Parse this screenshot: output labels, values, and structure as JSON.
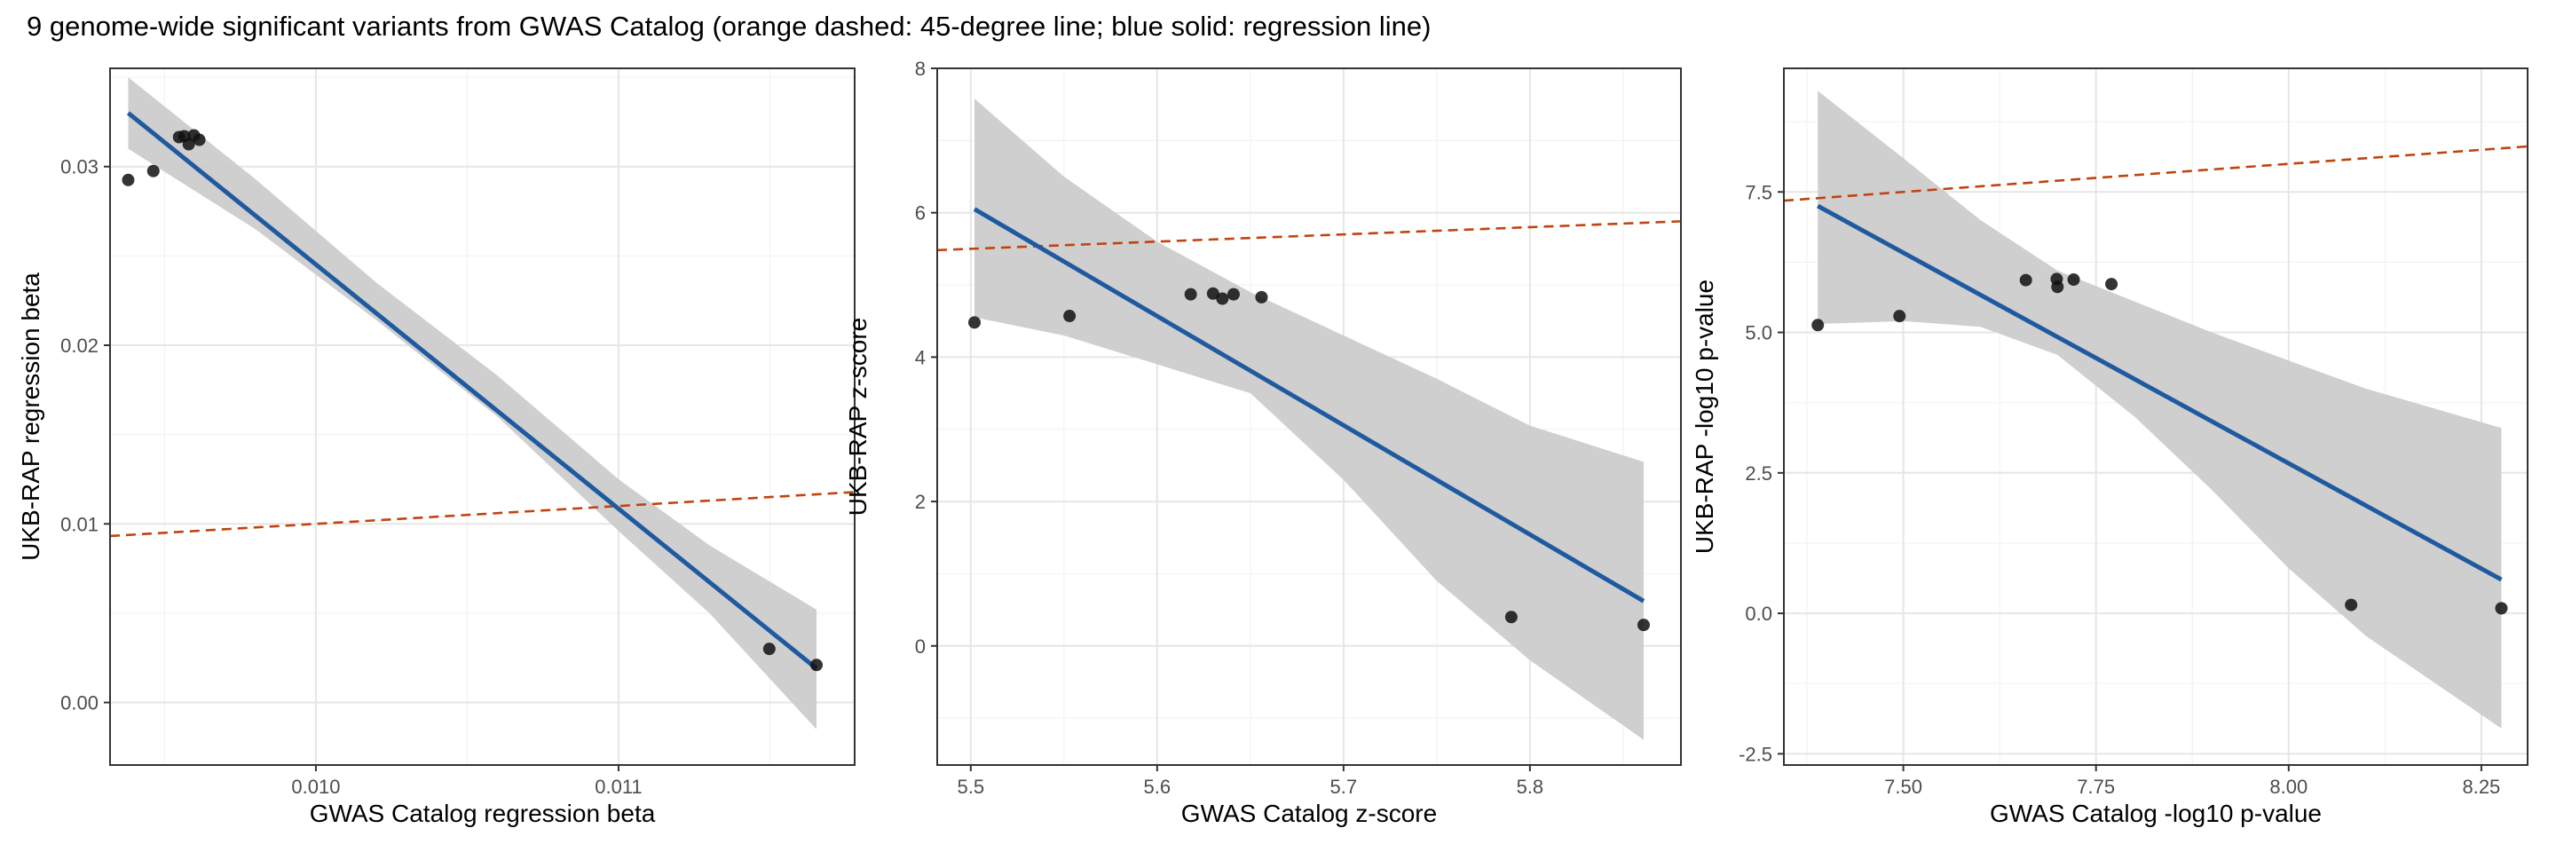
{
  "figure": {
    "title": "9 genome-wide significant variants from GWAS Catalog (orange dashed: 45-degree line; blue solid: regression line)"
  },
  "colors": {
    "regression_line": "#1f5aa0",
    "identity_line": "#c0440e",
    "confidence_band": "#cccccc",
    "points": "#111111",
    "grid_major": "#e6e6e6",
    "grid_minor": "#f3f3f3",
    "panel_border": "#333333"
  },
  "chart_data": [
    {
      "type": "scatter",
      "xlabel": "GWAS Catalog regression beta",
      "ylabel": "UKB-RAP regression beta",
      "xlim": [
        0.00932,
        0.01178
      ],
      "ylim": [
        -0.0035,
        0.0355
      ],
      "xticks": [
        0.01,
        0.011
      ],
      "xtick_labels": [
        "0.010",
        "0.011"
      ],
      "yticks": [
        0.0,
        0.01,
        0.02,
        0.03
      ],
      "ytick_labels": [
        "0.00",
        "0.01",
        "0.02",
        "0.03"
      ],
      "points": [
        {
          "x": 0.00938,
          "y": 0.02925
        },
        {
          "x": 0.009463,
          "y": 0.02975
        },
        {
          "x": 0.009548,
          "y": 0.03165
        },
        {
          "x": 0.009565,
          "y": 0.0317
        },
        {
          "x": 0.00958,
          "y": 0.03125
        },
        {
          "x": 0.009597,
          "y": 0.03175
        },
        {
          "x": 0.009615,
          "y": 0.0315
        },
        {
          "x": 0.011498,
          "y": 0.003
        },
        {
          "x": 0.011654,
          "y": 0.0021
        }
      ],
      "regression": {
        "x0": 0.00938,
        "y0": 0.033,
        "x1": 0.011654,
        "y1": 0.0019
      },
      "band": [
        {
          "x": 0.00938,
          "lo": 0.031,
          "hi": 0.035
        },
        {
          "x": 0.0098,
          "lo": 0.0265,
          "hi": 0.0293
        },
        {
          "x": 0.0102,
          "lo": 0.0214,
          "hi": 0.0235
        },
        {
          "x": 0.0106,
          "lo": 0.016,
          "hi": 0.0183
        },
        {
          "x": 0.011,
          "lo": 0.0096,
          "hi": 0.0125
        },
        {
          "x": 0.0113,
          "lo": 0.005,
          "hi": 0.0088
        },
        {
          "x": 0.011654,
          "lo": -0.0015,
          "hi": 0.0052
        }
      ],
      "identity_line": true
    },
    {
      "type": "scatter",
      "xlabel": "GWAS Catalog z-score",
      "ylabel": "UKB-RAP z-score",
      "xlim": [
        5.482,
        5.881
      ],
      "ylim": [
        -1.65,
        8.0
      ],
      "xticks": [
        5.5,
        5.6,
        5.7,
        5.8
      ],
      "xtick_labels": [
        "5.5",
        "5.6",
        "5.7",
        "5.8"
      ],
      "yticks": [
        0,
        2,
        4,
        6,
        8
      ],
      "ytick_labels": [
        "0",
        "2",
        "4",
        "6",
        "8"
      ],
      "points": [
        {
          "x": 5.502,
          "y": 4.48
        },
        {
          "x": 5.553,
          "y": 4.57
        },
        {
          "x": 5.618,
          "y": 4.87
        },
        {
          "x": 5.63,
          "y": 4.88
        },
        {
          "x": 5.635,
          "y": 4.81
        },
        {
          "x": 5.641,
          "y": 4.87
        },
        {
          "x": 5.656,
          "y": 4.83
        },
        {
          "x": 5.79,
          "y": 0.4
        },
        {
          "x": 5.861,
          "y": 0.29
        }
      ],
      "regression": {
        "x0": 5.502,
        "y0": 6.05,
        "x1": 5.861,
        "y1": 0.62
      },
      "band": [
        {
          "x": 5.502,
          "lo": 4.55,
          "hi": 7.58
        },
        {
          "x": 5.55,
          "lo": 4.3,
          "hi": 6.5
        },
        {
          "x": 5.6,
          "lo": 3.9,
          "hi": 5.6
        },
        {
          "x": 5.65,
          "lo": 3.5,
          "hi": 4.9
        },
        {
          "x": 5.7,
          "lo": 2.3,
          "hi": 4.3
        },
        {
          "x": 5.75,
          "lo": 0.9,
          "hi": 3.7
        },
        {
          "x": 5.8,
          "lo": -0.2,
          "hi": 3.05
        },
        {
          "x": 5.861,
          "lo": -1.3,
          "hi": 2.55
        }
      ],
      "identity_line": true
    },
    {
      "type": "scatter",
      "xlabel": "GWAS Catalog -log10 p-value",
      "ylabel": "UKB-RAP -log10 p-value",
      "xlim": [
        7.345,
        8.31
      ],
      "ylim": [
        -2.7,
        9.7
      ],
      "xticks": [
        7.5,
        7.75,
        8.0,
        8.25
      ],
      "xtick_labels": [
        "7.50",
        "7.75",
        "8.00",
        "8.25"
      ],
      "yticks": [
        -2.5,
        0.0,
        2.5,
        5.0,
        7.5
      ],
      "ytick_labels": [
        "-2.5",
        "0.0",
        "2.5",
        "5.0",
        "7.5"
      ],
      "points": [
        {
          "x": 7.389,
          "y": 5.13
        },
        {
          "x": 7.495,
          "y": 5.29
        },
        {
          "x": 7.659,
          "y": 5.93
        },
        {
          "x": 7.699,
          "y": 5.95
        },
        {
          "x": 7.7,
          "y": 5.81
        },
        {
          "x": 7.721,
          "y": 5.94
        },
        {
          "x": 7.77,
          "y": 5.86
        },
        {
          "x": 8.081,
          "y": 0.15
        },
        {
          "x": 8.276,
          "y": 0.09
        }
      ],
      "regression": {
        "x0": 7.389,
        "y0": 7.25,
        "x1": 8.276,
        "y1": 0.6
      },
      "band": [
        {
          "x": 7.389,
          "lo": 5.15,
          "hi": 9.3
        },
        {
          "x": 7.5,
          "lo": 5.2,
          "hi": 8.1
        },
        {
          "x": 7.6,
          "lo": 5.1,
          "hi": 7.0
        },
        {
          "x": 7.7,
          "lo": 4.6,
          "hi": 6.1
        },
        {
          "x": 7.8,
          "lo": 3.5,
          "hi": 5.55
        },
        {
          "x": 7.9,
          "lo": 2.2,
          "hi": 5.0
        },
        {
          "x": 8.0,
          "lo": 0.8,
          "hi": 4.5
        },
        {
          "x": 8.1,
          "lo": -0.4,
          "hi": 4.0
        },
        {
          "x": 8.276,
          "lo": -2.05,
          "hi": 3.3
        }
      ],
      "identity_line": true
    }
  ]
}
